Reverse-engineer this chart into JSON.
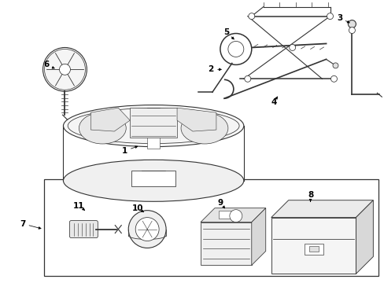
{
  "bg_color": "#ffffff",
  "line_color": "#333333",
  "label_color": "#000000",
  "fig_width": 4.89,
  "fig_height": 3.6,
  "dpi": 100
}
